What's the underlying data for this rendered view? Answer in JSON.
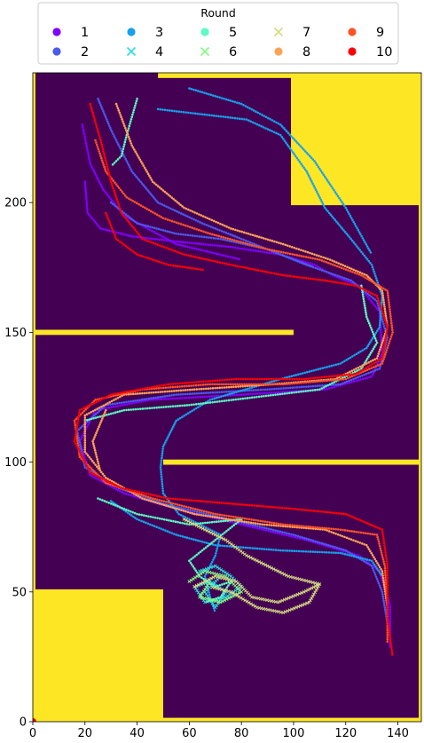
{
  "chart_data": {
    "type": "scatter",
    "title": "",
    "xlabel": "",
    "ylabel": "",
    "xlim": [
      0,
      149
    ],
    "ylim": [
      0,
      250
    ],
    "xticks": [
      0,
      20,
      40,
      60,
      80,
      100,
      120,
      140
    ],
    "yticks": [
      0,
      50,
      100,
      150,
      200
    ],
    "grid": false,
    "legend": {
      "title": "Round",
      "placement": "top-center",
      "columns": 5
    },
    "background": {
      "free_color": "#440154",
      "wall_color": "#fde725",
      "walls": [
        {
          "name": "left-border",
          "x0": 0,
          "x1": 1,
          "y0": 0,
          "y1": 250
        },
        {
          "name": "right-border",
          "x0": 148,
          "x1": 149,
          "y0": 0,
          "y1": 250
        },
        {
          "name": "top-strip",
          "x0": 48,
          "x1": 149,
          "y0": 248,
          "y1": 250
        },
        {
          "name": "bottom-strip",
          "x0": 50,
          "x1": 149,
          "y0": 0,
          "y1": 1.5
        },
        {
          "name": "top-right-block",
          "x0": 99,
          "x1": 149,
          "y0": 199,
          "y1": 250
        },
        {
          "name": "bottom-left-block",
          "x0": 0,
          "x1": 50,
          "y0": 0,
          "y1": 51
        },
        {
          "name": "wall-left-arm",
          "x0": 0,
          "x1": 100,
          "y0": 149,
          "y1": 151
        },
        {
          "name": "wall-right-arm",
          "x0": 50,
          "x1": 149,
          "y0": 99,
          "y1": 101
        }
      ]
    },
    "origin_marker": {
      "x": 0,
      "y": 0,
      "color": "#ff0000"
    },
    "series": [
      {
        "name": "1",
        "marker": "o",
        "color": "#8000ff",
        "paths": [
          [
            [
              20,
              208
            ],
            [
              21,
              196
            ],
            [
              26,
              190
            ],
            [
              38,
              187
            ],
            [
              55,
              185
            ],
            [
              75,
              183
            ],
            [
              95,
              180
            ],
            [
              108,
              176
            ],
            [
              115,
              172
            ],
            [
              125,
              168
            ],
            [
              133,
              158
            ],
            [
              134,
              142
            ],
            [
              130,
              133
            ],
            [
              112,
              128
            ],
            [
              80,
              126
            ],
            [
              45,
              124
            ],
            [
              24,
              120
            ],
            [
              18,
              108
            ],
            [
              22,
              95
            ],
            [
              35,
              88
            ],
            [
              55,
              82
            ],
            [
              80,
              76
            ],
            [
              105,
              70
            ],
            [
              125,
              64
            ],
            [
              133,
              58
            ],
            [
              137,
              45
            ],
            [
              137,
              28
            ]
          ],
          [
            [
              19,
              230
            ],
            [
              22,
              215
            ],
            [
              27,
              205
            ],
            [
              35,
              195
            ],
            [
              55,
              184
            ],
            [
              80,
              178
            ]
          ]
        ]
      },
      {
        "name": "2",
        "marker": "o",
        "color": "#4a5aef",
        "paths": [
          [
            [
              25,
              240
            ],
            [
              30,
              228
            ],
            [
              38,
              212
            ],
            [
              48,
              200
            ],
            [
              65,
              192
            ],
            [
              85,
              184
            ],
            [
              105,
              176
            ],
            [
              122,
              170
            ],
            [
              132,
              162
            ],
            [
              136,
              148
            ],
            [
              133,
              136
            ],
            [
              118,
              130
            ],
            [
              90,
              128
            ],
            [
              55,
              126
            ],
            [
              28,
              122
            ],
            [
              17,
              112
            ],
            [
              20,
              98
            ],
            [
              33,
              90
            ],
            [
              50,
              84
            ],
            [
              75,
              78
            ],
            [
              100,
              72
            ],
            [
              120,
              66
            ],
            [
              130,
              60
            ],
            [
              134,
              50
            ],
            [
              136,
              38
            ]
          ],
          [
            [
              30,
              200
            ],
            [
              40,
              192
            ],
            [
              55,
              188
            ],
            [
              72,
              186
            ],
            [
              90,
              182
            ],
            [
              108,
              175
            ]
          ]
        ]
      },
      {
        "name": "3",
        "marker": "o",
        "color": "#15a1ec",
        "paths": [
          [
            [
              48,
              236
            ],
            [
              65,
              234
            ],
            [
              82,
              232
            ],
            [
              95,
              226
            ],
            [
              105,
              212
            ],
            [
              112,
              198
            ],
            [
              122,
              186
            ],
            [
              130,
              176
            ],
            [
              134,
              164
            ],
            [
              133,
              152
            ],
            [
              128,
              144
            ],
            [
              118,
              138
            ],
            [
              95,
              132
            ],
            [
              68,
              124
            ],
            [
              55,
              116
            ],
            [
              50,
              106
            ],
            [
              49,
              98
            ],
            [
              50,
              88
            ],
            [
              56,
              80
            ],
            [
              72,
              72
            ],
            [
              70,
              64
            ],
            [
              66,
              56
            ],
            [
              68,
              48
            ],
            [
              70,
              42
            ]
          ],
          [
            [
              60,
              244
            ],
            [
              80,
              238
            ],
            [
              95,
              230
            ],
            [
              108,
              216
            ],
            [
              120,
              198
            ],
            [
              130,
              180
            ]
          ],
          [
            [
              30,
              85
            ],
            [
              40,
              78
            ],
            [
              55,
              72
            ],
            [
              70,
              68
            ],
            [
              95,
              66
            ],
            [
              118,
              65
            ],
            [
              130,
              62
            ],
            [
              134,
              56
            ]
          ]
        ]
      },
      {
        "name": "4",
        "marker": "x",
        "color": "#2adddd",
        "paths": [
          [
            [
              64,
              58
            ],
            [
              70,
              60
            ],
            [
              76,
              56
            ],
            [
              80,
              52
            ],
            [
              74,
              48
            ],
            [
              66,
              46
            ],
            [
              62,
              52
            ],
            [
              68,
              54
            ],
            [
              74,
              50
            ],
            [
              70,
              44
            ],
            [
              66,
              50
            ],
            [
              72,
              56
            ]
          ]
        ]
      },
      {
        "name": "5",
        "marker": "o",
        "color": "#5bfbc4",
        "paths": [
          [
            [
              40,
              240
            ],
            [
              36,
              226
            ],
            [
              34,
              218
            ],
            [
              30,
              214
            ]
          ],
          [
            [
              126,
              168
            ],
            [
              128,
              156
            ],
            [
              132,
              146
            ],
            [
              126,
              136
            ],
            [
              110,
              128
            ],
            [
              85,
              125
            ],
            [
              60,
              122
            ],
            [
              35,
              120
            ],
            [
              20,
              116
            ]
          ],
          [
            [
              25,
              86
            ],
            [
              40,
              80
            ],
            [
              60,
              76
            ],
            [
              80,
              78
            ],
            [
              70,
              70
            ],
            [
              60,
              62
            ],
            [
              64,
              56
            ],
            [
              70,
              52
            ],
            [
              76,
              54
            ],
            [
              72,
              48
            ],
            [
              66,
              46
            ]
          ]
        ]
      },
      {
        "name": "6",
        "marker": "x",
        "color": "#84fa84",
        "paths": [
          [
            [
              60,
              54
            ],
            [
              66,
              58
            ],
            [
              74,
              56
            ],
            [
              80,
              50
            ],
            [
              72,
              46
            ],
            [
              64,
              48
            ],
            [
              68,
              54
            ]
          ]
        ]
      },
      {
        "name": "7",
        "marker": "x",
        "color": "#d4dd80",
        "paths": [
          [
            [
              62,
              52
            ],
            [
              70,
              56
            ],
            [
              78,
              54
            ],
            [
              84,
              48
            ],
            [
              94,
              46
            ],
            [
              104,
              50
            ],
            [
              110,
              53
            ],
            [
              106,
              46
            ],
            [
              96,
              42
            ],
            [
              86,
              44
            ],
            [
              76,
              50
            ],
            [
              68,
              52
            ]
          ],
          [
            [
              58,
              78
            ],
            [
              66,
              74
            ],
            [
              74,
              70
            ],
            [
              82,
              64
            ],
            [
              90,
              60
            ],
            [
              98,
              56
            ],
            [
              110,
              53
            ]
          ]
        ]
      },
      {
        "name": "8",
        "marker": "o",
        "color": "#ffa256",
        "paths": [
          [
            [
              32,
              238
            ],
            [
              38,
              222
            ],
            [
              46,
              208
            ],
            [
              58,
              198
            ],
            [
              76,
              190
            ],
            [
              96,
              184
            ],
            [
              114,
              178
            ],
            [
              128,
              172
            ],
            [
              134,
              166
            ],
            [
              136,
              152
            ],
            [
              132,
              140
            ],
            [
              116,
              132
            ],
            [
              92,
              130
            ],
            [
              62,
              128
            ],
            [
              35,
              126
            ],
            [
              20,
              118
            ],
            [
              20,
              104
            ],
            [
              28,
              94
            ],
            [
              42,
              86
            ],
            [
              62,
              80
            ],
            [
              88,
              76
            ],
            [
              112,
              74
            ],
            [
              128,
              68
            ],
            [
              134,
              58
            ],
            [
              136,
              44
            ]
          ],
          [
            [
              28,
              120
            ],
            [
              23,
              108
            ],
            [
              26,
              96
            ]
          ]
        ]
      },
      {
        "name": "9",
        "marker": "o",
        "color": "#ff5128",
        "paths": [
          [
            [
              24,
              224
            ],
            [
              28,
              212
            ],
            [
              36,
              202
            ],
            [
              50,
              194
            ],
            [
              68,
              188
            ],
            [
              90,
              182
            ],
            [
              110,
              178
            ],
            [
              126,
              172
            ],
            [
              136,
              166
            ],
            [
              138,
              150
            ],
            [
              134,
              138
            ],
            [
              120,
              132
            ],
            [
              96,
              130
            ],
            [
              68,
              130
            ],
            [
              42,
              128
            ],
            [
              24,
              124
            ],
            [
              16,
              116
            ],
            [
              18,
              102
            ],
            [
              28,
              92
            ],
            [
              46,
              86
            ],
            [
              70,
              80
            ],
            [
              96,
              76
            ],
            [
              118,
              74
            ],
            [
              132,
              72
            ],
            [
              135,
              60
            ],
            [
              136,
              44
            ],
            [
              136,
              30
            ]
          ]
        ]
      },
      {
        "name": "10",
        "marker": "o",
        "color": "#ff0000",
        "paths": [
          [
            [
              22,
              238
            ],
            [
              26,
              224
            ],
            [
              30,
              208
            ],
            [
              34,
              196
            ],
            [
              42,
              186
            ],
            [
              58,
              180
            ],
            [
              76,
              176
            ],
            [
              96,
              172
            ],
            [
              112,
              170
            ],
            [
              124,
              168
            ],
            [
              132,
              164
            ],
            [
              136,
              152
            ],
            [
              134,
              140
            ],
            [
              124,
              134
            ],
            [
              104,
              132
            ],
            [
              78,
              132
            ],
            [
              52,
              130
            ],
            [
              30,
              126
            ],
            [
              18,
              120
            ],
            [
              16,
              108
            ],
            [
              22,
              96
            ],
            [
              34,
              90
            ],
            [
              52,
              86
            ],
            [
              76,
              84
            ],
            [
              100,
              82
            ],
            [
              120,
              80
            ],
            [
              134,
              74
            ],
            [
              136,
              60
            ],
            [
              136,
              40
            ],
            [
              138,
              25
            ]
          ],
          [
            [
              28,
              196
            ],
            [
              32,
              186
            ],
            [
              40,
              180
            ],
            [
              52,
              176
            ],
            [
              66,
              174
            ]
          ]
        ]
      }
    ]
  }
}
